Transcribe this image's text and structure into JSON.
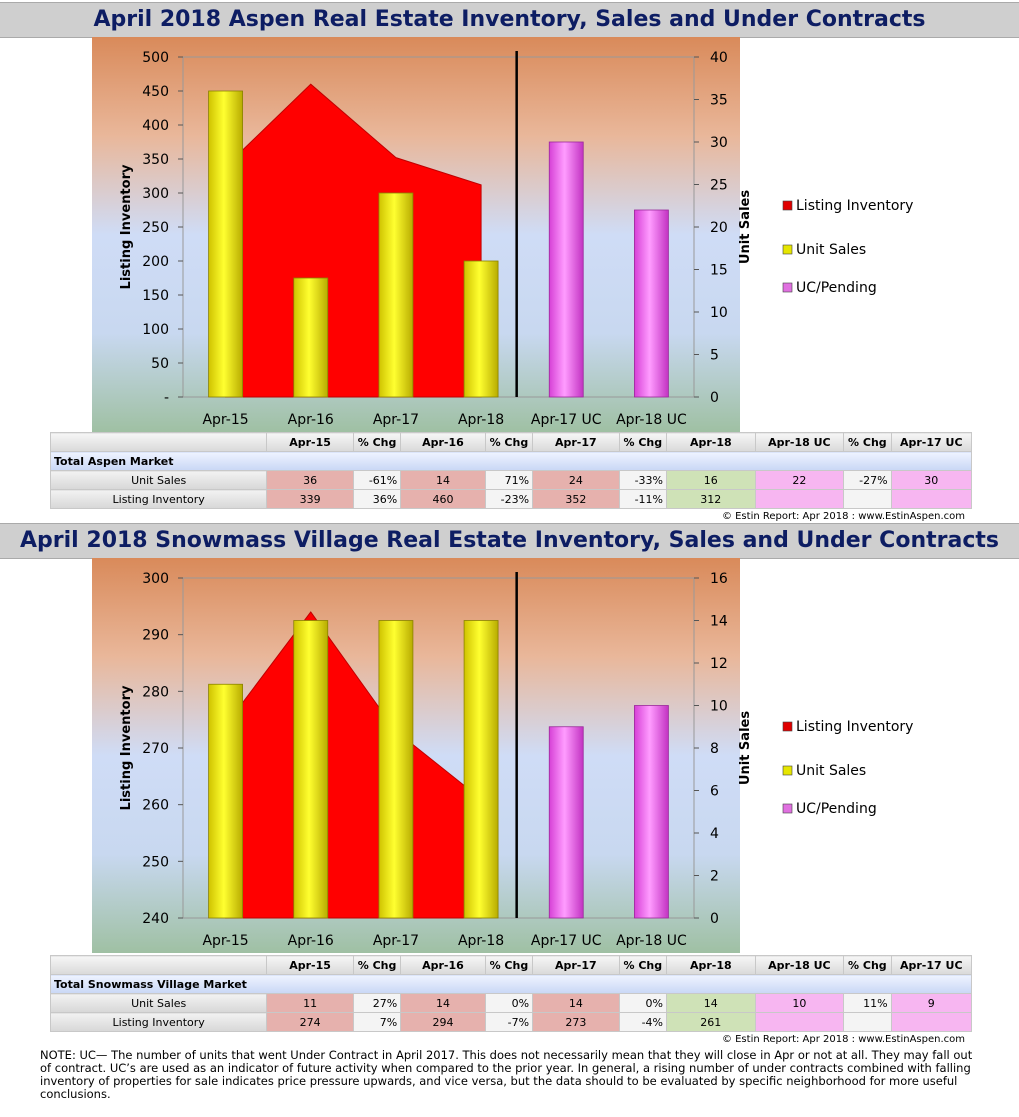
{
  "sections": [
    {
      "title": "April 2018 Aspen Real Estate Inventory, Sales and Under Contracts",
      "credit": "© Estin Report: Apr 2018 : www.EstinAspen.com",
      "table": {
        "headers": [
          "",
          "Apr-15",
          "% Chg",
          "Apr-16",
          "% Chg",
          "Apr-17",
          "% Chg",
          "Apr-18",
          "Apr-18 UC",
          "% Chg",
          "Apr-17 UC"
        ],
        "market_label": "Total Aspen Market",
        "rows": [
          {
            "label": "Unit Sales",
            "cells": [
              "36",
              "-61%",
              "14",
              "71%",
              "24",
              "-33%",
              "16",
              "22",
              "-27%",
              "30"
            ]
          },
          {
            "label": "Listing Inventory",
            "cells": [
              "339",
              "36%",
              "460",
              "-23%",
              "352",
              "-11%",
              "312",
              "",
              "",
              ""
            ]
          }
        ]
      }
    },
    {
      "title": "April 2018 Snowmass Village Real Estate Inventory, Sales and Under Contracts",
      "credit": "© Estin Report: Apr 2018 : www.EstinAspen.com",
      "table": {
        "headers": [
          "",
          "Apr-15",
          "% Chg",
          "Apr-16",
          "% Chg",
          "Apr-17",
          "% Chg",
          "Apr-18",
          "Apr-18 UC",
          "% Chg",
          "Apr-17 UC"
        ],
        "market_label": "Total Snowmass Village Market",
        "rows": [
          {
            "label": "Unit Sales",
            "cells": [
              "11",
              "27%",
              "14",
              "0%",
              "14",
              "0%",
              "14",
              "10",
              "11%",
              "9"
            ]
          },
          {
            "label": "Listing Inventory",
            "cells": [
              "274",
              "7%",
              "294",
              "-7%",
              "273",
              "-4%",
              "261",
              "",
              "",
              ""
            ]
          }
        ]
      }
    }
  ],
  "chart_data": [
    {
      "type": "bar",
      "categories": [
        "Apr-15",
        "Apr-16",
        "Apr-17",
        "Apr-18",
        "Apr-17 UC",
        "Apr-18 UC"
      ],
      "ylabel": "Listing Inventory",
      "y2label": "Unit Sales",
      "ylim": [
        0,
        500
      ],
      "yticks": [
        "-",
        "50",
        "100",
        "150",
        "200",
        "250",
        "300",
        "350",
        "400",
        "450",
        "500"
      ],
      "y2lim": [
        0,
        40
      ],
      "y2ticks": [
        "0",
        "5",
        "10",
        "15",
        "20",
        "25",
        "30",
        "35",
        "40"
      ],
      "legend": [
        "Listing Inventory",
        "Unit Sales",
        "UC/Pending"
      ],
      "legend_position": "right",
      "series": [
        {
          "name": "Listing Inventory",
          "type": "area",
          "axis": "left",
          "values": [
            339,
            460,
            352,
            312,
            null,
            null
          ],
          "color": "#ff0000"
        },
        {
          "name": "Unit Sales",
          "type": "bar",
          "axis": "right",
          "values": [
            36,
            14,
            24,
            16,
            null,
            null
          ],
          "color": "#ffff00"
        },
        {
          "name": "UC/Pending",
          "type": "bar",
          "axis": "right",
          "values": [
            null,
            null,
            null,
            null,
            30,
            22
          ],
          "color": "#ff66ff"
        }
      ]
    },
    {
      "type": "bar",
      "categories": [
        "Apr-15",
        "Apr-16",
        "Apr-17",
        "Apr-18",
        "Apr-17 UC",
        "Apr-18 UC"
      ],
      "ylabel": "Listing Inventory",
      "y2label": "Unit Sales",
      "ylim": [
        240,
        300
      ],
      "yticks": [
        "240",
        "250",
        "260",
        "270",
        "280",
        "290",
        "300"
      ],
      "y2lim": [
        0,
        16
      ],
      "y2ticks": [
        "0",
        "2",
        "4",
        "6",
        "8",
        "10",
        "12",
        "14",
        "16"
      ],
      "legend": [
        "Listing Inventory",
        "Unit Sales",
        "UC/Pending"
      ],
      "legend_position": "right",
      "series": [
        {
          "name": "Listing Inventory",
          "type": "area",
          "axis": "left",
          "values": [
            274,
            294,
            273,
            261,
            null,
            null
          ],
          "color": "#ff0000"
        },
        {
          "name": "Unit Sales",
          "type": "bar",
          "axis": "right",
          "values": [
            11,
            14,
            14,
            14,
            null,
            null
          ],
          "color": "#ffff00"
        },
        {
          "name": "UC/Pending",
          "type": "bar",
          "axis": "right",
          "values": [
            null,
            null,
            null,
            null,
            9,
            10
          ],
          "color": "#ff66ff"
        }
      ]
    }
  ],
  "note": "NOTE: UC— The number of units that went Under Contract in April 2017. This does not necessarily mean that they will close in Apr or not at all. They may fall out of contract.  UC’s are used as an indicator of future activity when compared to the prior year. In general, a rising number of under contracts combined with falling inventory of properties for sale indicates price pressure upwards, and vice versa, but the data should to be evaluated by specific neighborhood for more useful conclusions."
}
